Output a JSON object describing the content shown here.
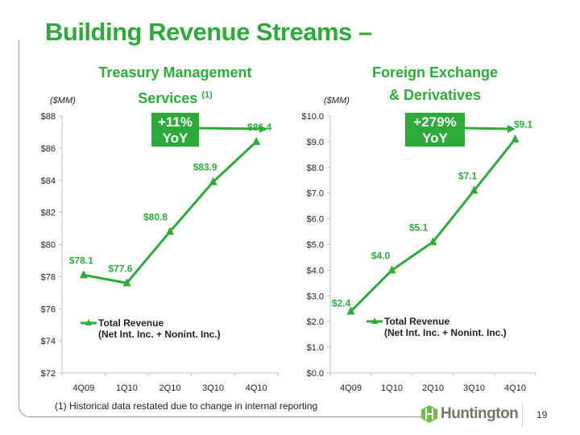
{
  "title": "Building Revenue Streams –",
  "footnote": "(1)  Historical data restated due to change in internal reporting",
  "brand": "Huntington",
  "page_number": "19",
  "colors": {
    "accent": "#2eaa3a",
    "line": "#2eaa3a",
    "axis": "#bfbfbf"
  },
  "chart_data": [
    {
      "type": "line",
      "title_line1": "Treasury Management",
      "title_line2": "Services",
      "title_sup": "(1)",
      "unit": "($MM)",
      "categories": [
        "4Q09",
        "1Q10",
        "2Q10",
        "3Q10",
        "4Q10"
      ],
      "series": [
        {
          "name": "Total Revenue",
          "name_line2": "(Net Int. Inc. + Nonint. Inc.)",
          "values": [
            78.1,
            77.6,
            80.8,
            83.9,
            86.4
          ]
        }
      ],
      "data_labels": [
        "$78.1",
        "$77.6",
        "$80.8",
        "$83.9",
        "$86.4"
      ],
      "ylim": [
        72,
        88
      ],
      "yticks": [
        72,
        74,
        76,
        78,
        80,
        82,
        84,
        86,
        88
      ],
      "ytick_labels": [
        "$72",
        "$74",
        "$76",
        "$78",
        "$80",
        "$82",
        "$84",
        "$86",
        "$88"
      ],
      "callout": {
        "line1": "+11%",
        "line2": "YoY"
      },
      "legend": "bottom-left"
    },
    {
      "type": "line",
      "title_line1": "Foreign Exchange",
      "title_line2": "& Derivatives",
      "title_sup": "",
      "unit": "($MM)",
      "categories": [
        "4Q09",
        "1Q10",
        "2Q10",
        "3Q10",
        "4Q10"
      ],
      "series": [
        {
          "name": "Total Revenue",
          "name_line2": "(Net Int. Inc. + Nonint. Inc.)",
          "values": [
            2.4,
            4.0,
            5.1,
            7.1,
            9.1
          ]
        }
      ],
      "data_labels": [
        "$2.4",
        "$4.0",
        "$5.1",
        "$7.1",
        "$9.1"
      ],
      "ylim": [
        0,
        10
      ],
      "yticks": [
        0,
        1,
        2,
        3,
        4,
        5,
        6,
        7,
        8,
        9,
        10
      ],
      "ytick_labels": [
        "$0.0",
        "$1.0",
        "$2.0",
        "$3.0",
        "$4.0",
        "$5.0",
        "$6.0",
        "$7.0",
        "$8.0",
        "$9.0",
        "$10.0"
      ],
      "callout": {
        "line1": "+279%",
        "line2": "YoY"
      },
      "legend": "bottom-left"
    }
  ]
}
